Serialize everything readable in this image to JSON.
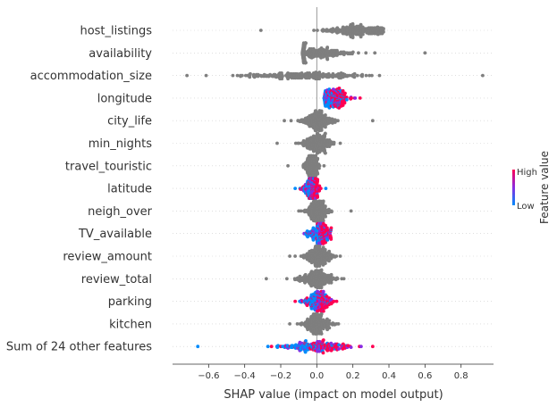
{
  "chart_data": {
    "type": "scatter",
    "subtype": "shap-beeswarm",
    "title": "",
    "xlabel": "SHAP value (impact on model output)",
    "ylabel": "",
    "xlim": [
      -0.8,
      0.98
    ],
    "xticks": [
      -0.6,
      -0.4,
      -0.2,
      0.0,
      0.2,
      0.4,
      0.6,
      0.8
    ],
    "xtick_labels": [
      "−0.6",
      "−0.4",
      "−0.2",
      "0.0",
      "0.2",
      "0.4",
      "0.6",
      "0.8"
    ],
    "grid": false,
    "zero_line": true,
    "colors": {
      "gray": "#7f7f7f",
      "high": "#ff0052",
      "low": "#008bfb",
      "mid": "#8a2be2",
      "text": "#333333"
    },
    "colorbar": {
      "title": "Feature value",
      "high_label": "High",
      "low_label": "Low"
    },
    "features": [
      {
        "name": "host_listings",
        "colored": false,
        "center": 0.22,
        "spread": 0.09,
        "min": -0.31,
        "max": 0.37
      },
      {
        "name": "availability",
        "colored": false,
        "center": 0.0,
        "spread": 0.1,
        "min": -0.08,
        "max": 0.6
      },
      {
        "name": "accommodation_size",
        "colored": false,
        "center": -0.08,
        "spread": 0.16,
        "min": -0.72,
        "max": 0.92
      },
      {
        "name": "longitude",
        "colored": true,
        "center": 0.09,
        "spread": 0.04,
        "min": 0.04,
        "max": 0.24
      },
      {
        "name": "city_life",
        "colored": false,
        "center": 0.0,
        "spread": 0.05,
        "min": -0.18,
        "max": 0.31
      },
      {
        "name": "min_nights",
        "colored": false,
        "center": 0.0,
        "spread": 0.04,
        "min": -0.22,
        "max": 0.13
      },
      {
        "name": "travel_touristic",
        "colored": false,
        "center": -0.03,
        "spread": 0.02,
        "min": -0.16,
        "max": 0.04
      },
      {
        "name": "latitude",
        "colored": true,
        "center": -0.03,
        "spread": 0.02,
        "min": -0.12,
        "max": 0.05
      },
      {
        "name": "neigh_over",
        "colored": false,
        "center": 0.0,
        "spread": 0.03,
        "min": -0.1,
        "max": 0.19
      },
      {
        "name": "TV_available",
        "colored": true,
        "center": 0.02,
        "spread": 0.03,
        "min": -0.07,
        "max": 0.08
      },
      {
        "name": "review_amount",
        "colored": false,
        "center": 0.0,
        "spread": 0.04,
        "min": -0.15,
        "max": 0.13
      },
      {
        "name": "review_total",
        "colored": false,
        "center": 0.0,
        "spread": 0.05,
        "min": -0.28,
        "max": 0.15
      },
      {
        "name": "parking",
        "colored": true,
        "center": 0.01,
        "spread": 0.04,
        "min": -0.12,
        "max": 0.11
      },
      {
        "name": "kitchen",
        "colored": false,
        "center": 0.0,
        "spread": 0.04,
        "min": -0.15,
        "max": 0.12
      },
      {
        "name": "Sum of 24 other features",
        "colored": true,
        "center": 0.0,
        "spread": 0.09,
        "min": -0.66,
        "max": 0.31
      }
    ]
  }
}
